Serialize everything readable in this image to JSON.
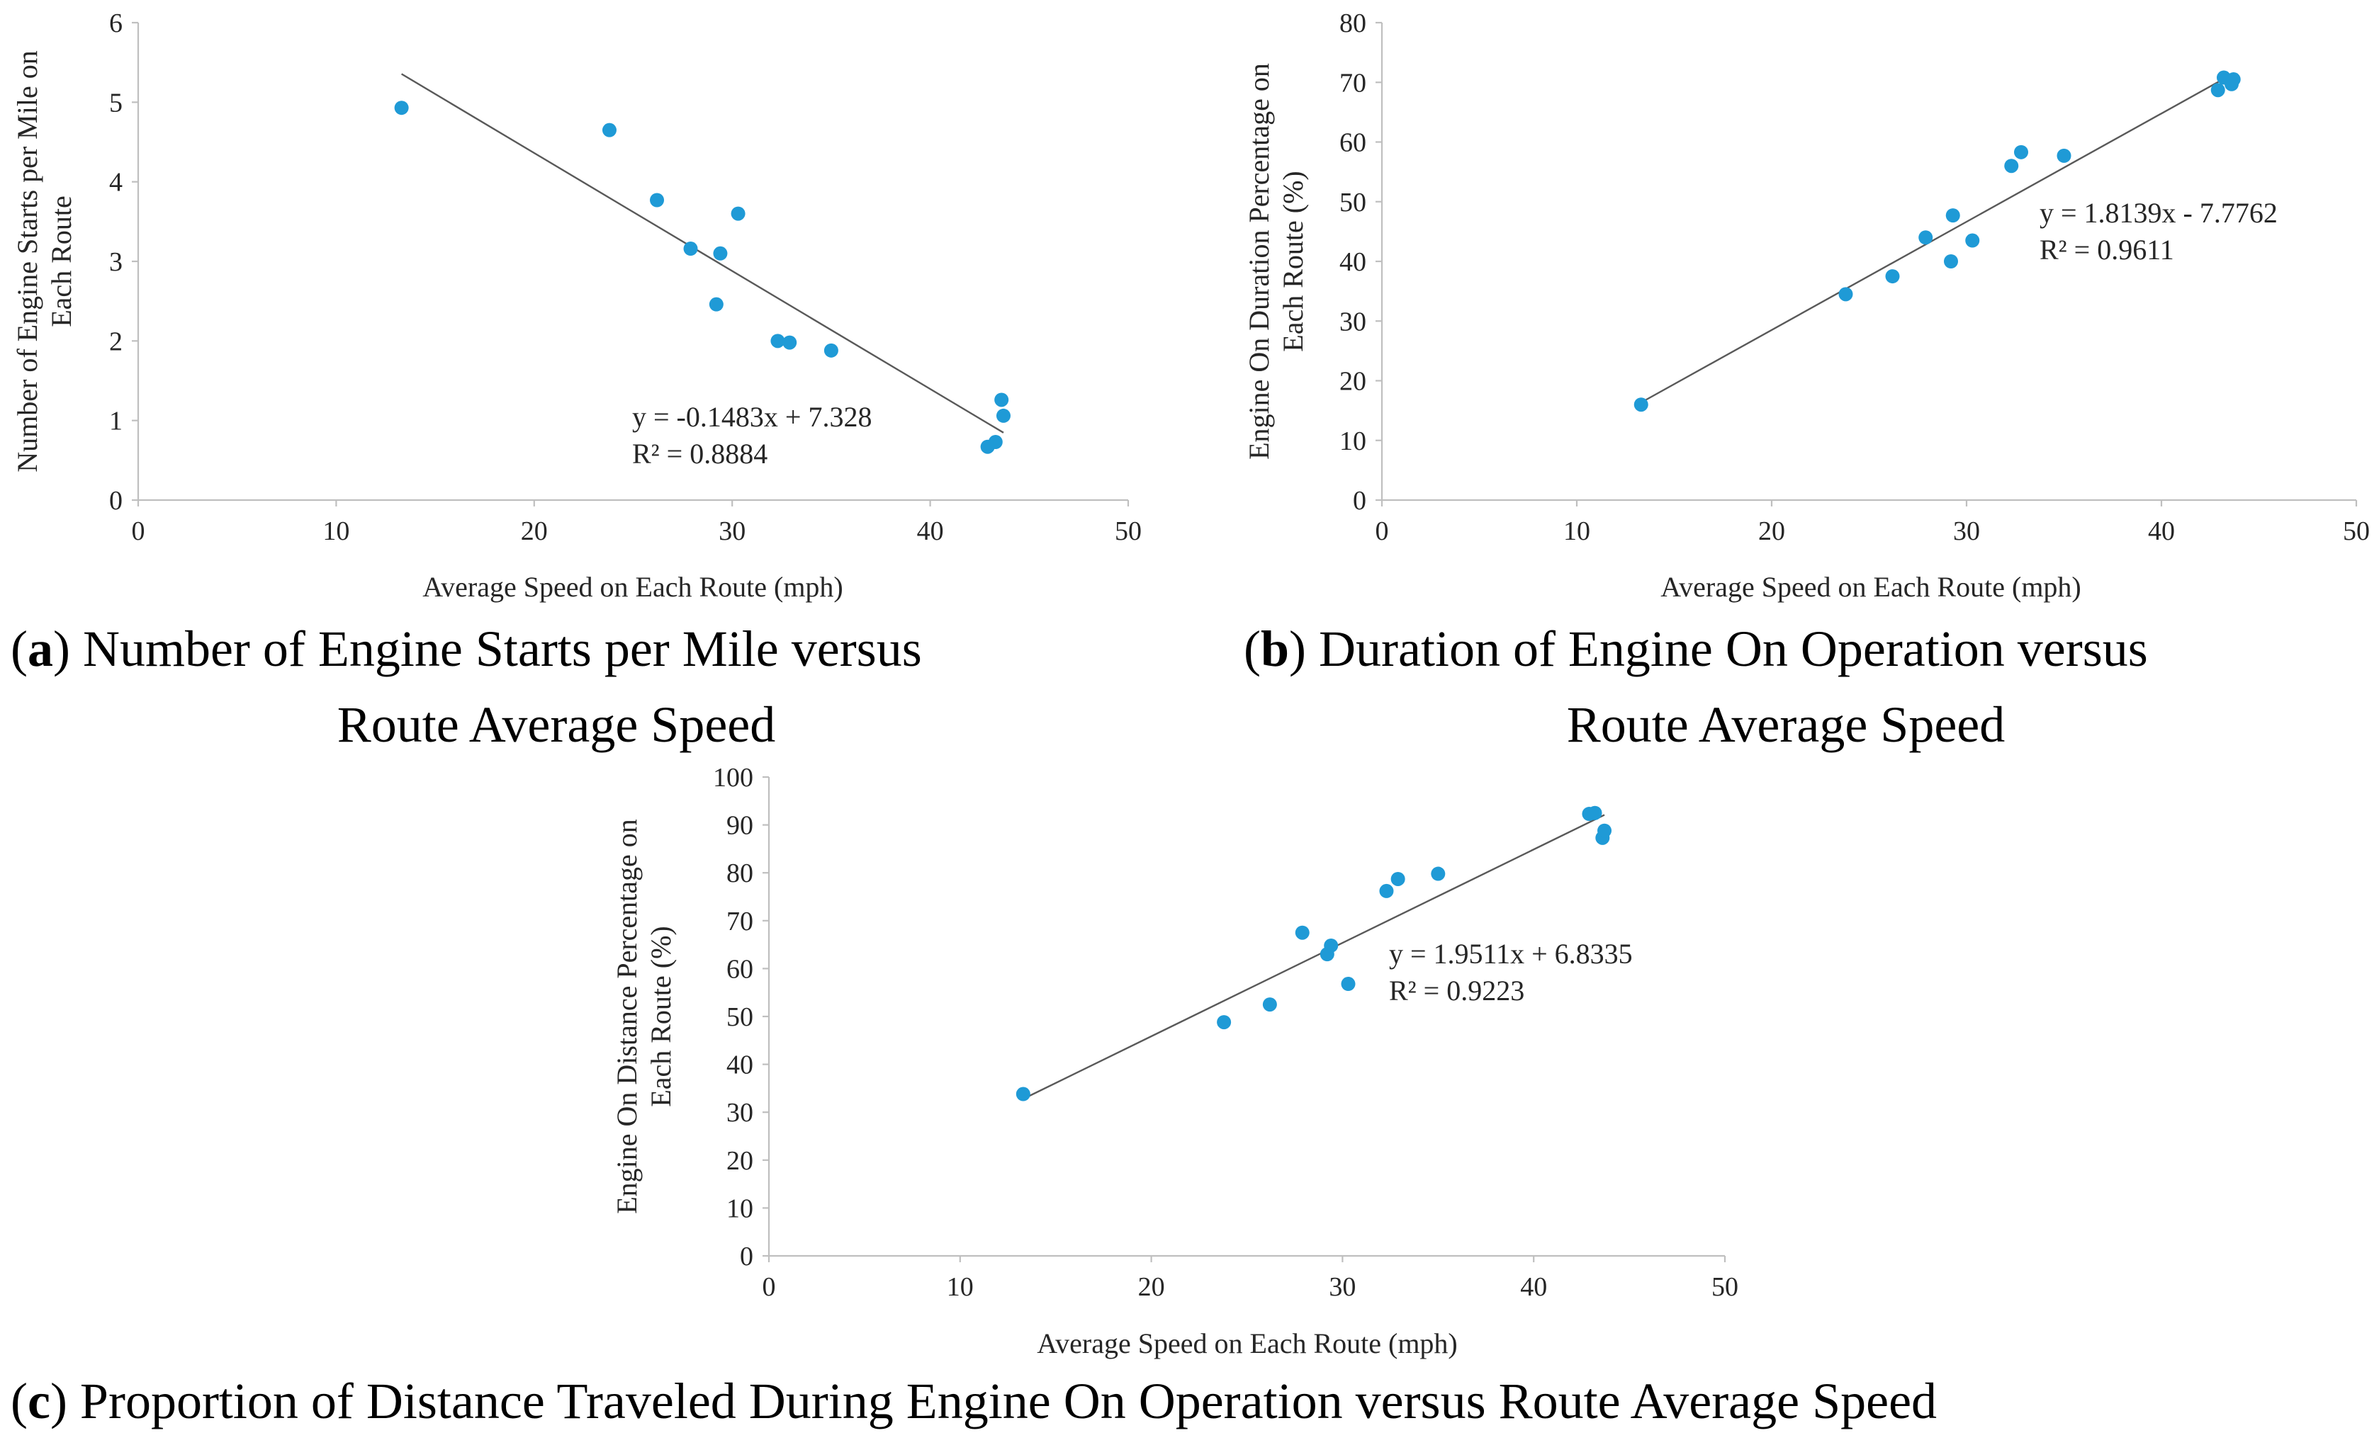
{
  "chart_data": [
    {
      "id": "a",
      "type": "scatter",
      "caption_label": "a",
      "caption_text": ") Number of Engine Starts per Mile versus",
      "caption_line2": "Route Average Speed",
      "xlabel": "Average  Speed on Each Route (mph)",
      "ylabel_line1": "Number of Engine Starts per Mile on",
      "ylabel_line2": "Each Route",
      "xlim": [
        0,
        50
      ],
      "ylim": [
        0,
        6
      ],
      "xticks": [
        0,
        10,
        20,
        30,
        40,
        50
      ],
      "yticks": [
        0,
        1,
        2,
        3,
        4,
        5,
        6
      ],
      "points": [
        {
          "x": 13.3,
          "y": 4.93
        },
        {
          "x": 23.8,
          "y": 4.65
        },
        {
          "x": 26.2,
          "y": 3.77
        },
        {
          "x": 27.9,
          "y": 3.16
        },
        {
          "x": 29.4,
          "y": 3.1
        },
        {
          "x": 30.3,
          "y": 3.6
        },
        {
          "x": 29.2,
          "y": 2.46
        },
        {
          "x": 32.3,
          "y": 2.0
        },
        {
          "x": 32.9,
          "y": 1.98
        },
        {
          "x": 35.0,
          "y": 1.88
        },
        {
          "x": 43.6,
          "y": 1.26
        },
        {
          "x": 43.7,
          "y": 1.06
        },
        {
          "x": 43.3,
          "y": 0.73
        },
        {
          "x": 42.9,
          "y": 0.67
        }
      ],
      "trendline": {
        "slope": -0.1483,
        "intercept": 7.328,
        "x_range": [
          13.3,
          43.7
        ]
      },
      "equation": "y = -0.1483x + 7.328",
      "r2_label": "R² = 0.8884"
    },
    {
      "id": "b",
      "type": "scatter",
      "caption_label": "b",
      "caption_text": ") Duration of Engine On Operation versus",
      "caption_line2": "Route Average Speed",
      "xlabel": "Average  Speed on Each Route (mph)",
      "ylabel_line1": "Engine On Duration Percentage on",
      "ylabel_line2": "Each Route (%)",
      "xlim": [
        0,
        50
      ],
      "ylim": [
        0,
        80
      ],
      "xticks": [
        0,
        10,
        20,
        30,
        40,
        50
      ],
      "yticks": [
        0,
        10,
        20,
        30,
        40,
        50,
        60,
        70,
        80
      ],
      "points": [
        {
          "x": 13.3,
          "y": 16.0
        },
        {
          "x": 23.8,
          "y": 34.5
        },
        {
          "x": 26.2,
          "y": 37.5
        },
        {
          "x": 27.9,
          "y": 44.0
        },
        {
          "x": 29.2,
          "y": 40.0
        },
        {
          "x": 29.3,
          "y": 47.7
        },
        {
          "x": 30.3,
          "y": 43.5
        },
        {
          "x": 32.3,
          "y": 56.0
        },
        {
          "x": 32.8,
          "y": 58.3
        },
        {
          "x": 35.0,
          "y": 57.7
        },
        {
          "x": 42.9,
          "y": 68.7
        },
        {
          "x": 43.2,
          "y": 70.8
        },
        {
          "x": 43.6,
          "y": 69.7
        },
        {
          "x": 43.7,
          "y": 70.5
        }
      ],
      "trendline": {
        "slope": 1.8139,
        "intercept": -7.7762,
        "x_range": [
          13.3,
          43.7
        ]
      },
      "equation": "y = 1.8139x - 7.7762",
      "r2_label": "R² = 0.9611"
    },
    {
      "id": "c",
      "type": "scatter",
      "caption_label": "c",
      "caption_text": ") Proportion of Distance Traveled During Engine On Operation versus Route Average Speed",
      "caption_line2": "",
      "xlabel": "Average  Speed on Each Route (mph)",
      "ylabel_line1": "Engine On Distance Percentage on",
      "ylabel_line2": "Each Route (%)",
      "xlim": [
        0,
        50
      ],
      "ylim": [
        0,
        100
      ],
      "xticks": [
        0,
        10,
        20,
        30,
        40,
        50
      ],
      "yticks": [
        0,
        10,
        20,
        30,
        40,
        50,
        60,
        70,
        80,
        90,
        100
      ],
      "points": [
        {
          "x": 13.3,
          "y": 33.8
        },
        {
          "x": 23.8,
          "y": 48.8
        },
        {
          "x": 26.2,
          "y": 52.5
        },
        {
          "x": 27.9,
          "y": 67.5
        },
        {
          "x": 29.2,
          "y": 63.0
        },
        {
          "x": 29.4,
          "y": 64.8
        },
        {
          "x": 30.3,
          "y": 56.8
        },
        {
          "x": 32.3,
          "y": 76.2
        },
        {
          "x": 32.9,
          "y": 78.7
        },
        {
          "x": 35.0,
          "y": 79.8
        },
        {
          "x": 42.9,
          "y": 92.3
        },
        {
          "x": 43.2,
          "y": 92.5
        },
        {
          "x": 43.6,
          "y": 87.3
        },
        {
          "x": 43.7,
          "y": 88.8
        }
      ],
      "trendline": {
        "slope": 1.9511,
        "intercept": 6.8335,
        "x_range": [
          13.3,
          43.7
        ]
      },
      "equation": "y = 1.9511x + 6.8335",
      "r2_label": "R² = 0.9223"
    }
  ]
}
